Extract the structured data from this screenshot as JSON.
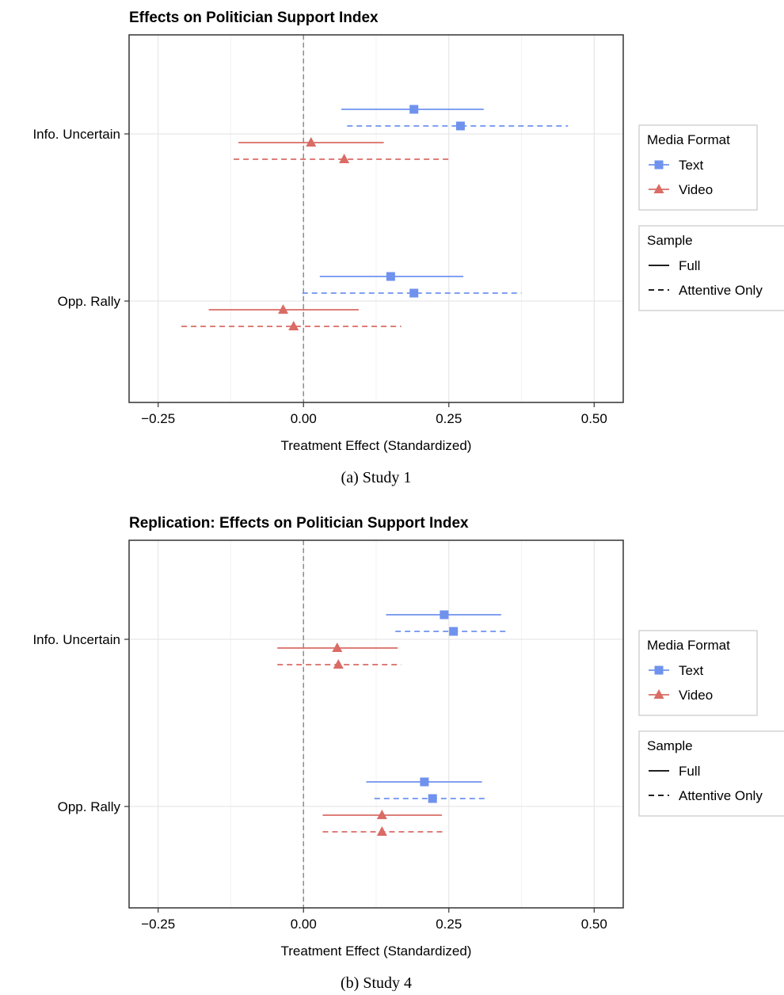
{
  "chart_data": [
    {
      "type": "forest",
      "title": "Effects on Politician Support Index",
      "caption": "(a) Study 1",
      "xlabel": "Treatment Effect (Standardized)",
      "xlim": [
        -0.3,
        0.55
      ],
      "xticks": [
        -0.25,
        0.0,
        0.25,
        0.5
      ],
      "xtick_labels": [
        "−0.25",
        "0.00",
        "0.25",
        "0.50"
      ],
      "reference_line": 0,
      "grid": true,
      "categories": [
        "Info. Uncertain",
        "Opp. Rally"
      ],
      "legends": [
        {
          "title": "Media Format",
          "items": [
            "Text",
            "Video"
          ]
        },
        {
          "title": "Sample",
          "items": [
            "Full",
            "Attentive Only"
          ]
        }
      ],
      "series": [
        {
          "format": "Text",
          "sample": "Full",
          "estimates": [
            0.19,
            0.15
          ],
          "ci_low": [
            0.065,
            0.028
          ],
          "ci_high": [
            0.31,
            0.275
          ]
        },
        {
          "format": "Text",
          "sample": "Attentive Only",
          "estimates": [
            0.27,
            0.19
          ],
          "ci_low": [
            0.075,
            -0.002
          ],
          "ci_high": [
            0.455,
            0.375
          ]
        },
        {
          "format": "Video",
          "sample": "Full",
          "estimates": [
            0.013,
            -0.035
          ],
          "ci_low": [
            -0.112,
            -0.163
          ],
          "ci_high": [
            0.138,
            0.095
          ]
        },
        {
          "format": "Video",
          "sample": "Attentive Only",
          "estimates": [
            0.07,
            -0.017
          ],
          "ci_low": [
            -0.12,
            -0.21
          ],
          "ci_high": [
            0.255,
            0.168
          ]
        }
      ]
    },
    {
      "type": "forest",
      "title": "Replication: Effects on Politician Support Index",
      "caption": "(b) Study 4",
      "xlabel": "Treatment Effect (Standardized)",
      "xlim": [
        -0.3,
        0.55
      ],
      "xticks": [
        -0.25,
        0.0,
        0.25,
        0.5
      ],
      "xtick_labels": [
        "−0.25",
        "0.00",
        "0.25",
        "0.50"
      ],
      "reference_line": 0,
      "grid": true,
      "categories": [
        "Info. Uncertain",
        "Opp. Rally"
      ],
      "legends": [
        {
          "title": "Media Format",
          "items": [
            "Text",
            "Video"
          ]
        },
        {
          "title": "Sample",
          "items": [
            "Full",
            "Attentive Only"
          ]
        }
      ],
      "series": [
        {
          "format": "Text",
          "sample": "Full",
          "estimates": [
            0.242,
            0.208
          ],
          "ci_low": [
            0.142,
            0.108
          ],
          "ci_high": [
            0.34,
            0.307
          ]
        },
        {
          "format": "Text",
          "sample": "Attentive Only",
          "estimates": [
            0.258,
            0.222
          ],
          "ci_low": [
            0.158,
            0.122
          ],
          "ci_high": [
            0.352,
            0.315
          ]
        },
        {
          "format": "Video",
          "sample": "Full",
          "estimates": [
            0.058,
            0.135
          ],
          "ci_low": [
            -0.045,
            0.033
          ],
          "ci_high": [
            0.162,
            0.238
          ]
        },
        {
          "format": "Video",
          "sample": "Attentive Only",
          "estimates": [
            0.06,
            0.135
          ],
          "ci_low": [
            -0.045,
            0.033
          ],
          "ci_high": [
            0.168,
            0.24
          ]
        }
      ]
    }
  ],
  "colors": {
    "Text": "#6f92ee",
    "Video": "#da6b65"
  }
}
